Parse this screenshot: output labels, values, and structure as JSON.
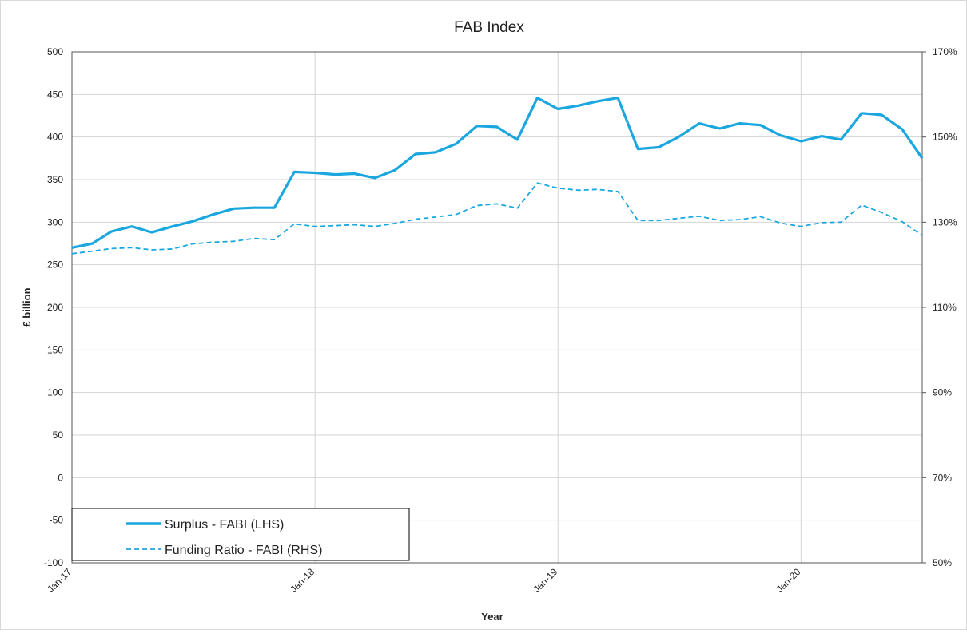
{
  "chart_data": {
    "type": "line",
    "title": "FAB Index",
    "xlabel": "Year",
    "ylabel": "£ billion",
    "ylim": [
      -100,
      500
    ],
    "y_ticks": [
      "-100",
      "-50",
      "0",
      "50",
      "100",
      "150",
      "200",
      "250",
      "300",
      "350",
      "400",
      "450",
      "500"
    ],
    "y2lim": [
      50,
      170
    ],
    "y2_ticks": [
      "50%",
      "70%",
      "90%",
      "110%",
      "130%",
      "150%",
      "170%"
    ],
    "x_ticks": [
      "Jan-17",
      "Jan-18",
      "Jan-19",
      "Jan-20"
    ],
    "grid": true,
    "legend_position": "bottom-left",
    "colors": {
      "series": "#1aa7e0"
    },
    "series": [
      {
        "name": "Surplus - FABI (LHS)",
        "axis": "left",
        "style": "solid",
        "x": [
          "2017-01",
          "2017-02",
          "2017-03",
          "2017-04",
          "2017-05",
          "2017-06",
          "2017-07",
          "2017-08",
          "2017-09",
          "2017-10",
          "2017-11",
          "2017-12",
          "2018-01",
          "2018-02",
          "2018-03",
          "2018-04",
          "2018-05",
          "2018-06",
          "2018-07",
          "2018-08",
          "2018-09",
          "2018-10",
          "2018-11",
          "2018-12",
          "2019-01",
          "2019-02",
          "2019-03",
          "2019-04",
          "2019-05",
          "2019-06",
          "2019-07",
          "2019-08",
          "2019-09",
          "2019-10",
          "2019-11",
          "2019-12",
          "2020-01",
          "2020-02",
          "2020-03",
          "2020-04",
          "2020-05",
          "2020-06",
          "2020-07"
        ],
        "values": [
          270,
          275,
          289,
          295,
          288,
          295,
          301,
          309,
          316,
          317,
          317,
          359,
          358,
          356,
          357,
          352,
          361,
          380,
          382,
          392,
          413,
          412,
          397,
          446,
          433,
          437,
          442,
          446,
          386,
          388,
          400,
          416,
          410,
          416,
          414,
          402,
          395,
          401,
          397,
          428,
          426,
          409,
          375
        ]
      },
      {
        "name": "Funding Ratio - FABI (RHS)",
        "axis": "right",
        "style": "dashed",
        "x": [
          "2017-01",
          "2017-02",
          "2017-03",
          "2017-04",
          "2017-05",
          "2017-06",
          "2017-07",
          "2017-08",
          "2017-09",
          "2017-10",
          "2017-11",
          "2017-12",
          "2018-01",
          "2018-02",
          "2018-03",
          "2018-04",
          "2018-05",
          "2018-06",
          "2018-07",
          "2018-08",
          "2018-09",
          "2018-10",
          "2018-11",
          "2018-12",
          "2019-01",
          "2019-02",
          "2019-03",
          "2019-04",
          "2019-05",
          "2019-06",
          "2019-07",
          "2019-08",
          "2019-09",
          "2019-10",
          "2019-11",
          "2019-12",
          "2020-01",
          "2020-02",
          "2020-03",
          "2020-04",
          "2020-05",
          "2020-06",
          "2020-07"
        ],
        "values": [
          122.6,
          123.2,
          123.8,
          124.0,
          123.5,
          123.7,
          124.9,
          125.3,
          125.5,
          126.2,
          125.9,
          129.6,
          129.0,
          129.2,
          129.4,
          129.0,
          129.7,
          130.7,
          131.2,
          131.8,
          133.9,
          134.3,
          133.3,
          139.2,
          138.0,
          137.5,
          137.7,
          137.2,
          130.4,
          130.4,
          130.9,
          131.4,
          130.4,
          130.6,
          131.3,
          129.8,
          129.0,
          129.9,
          130.0,
          134.0,
          132.3,
          130.1,
          126.9
        ]
      }
    ]
  }
}
